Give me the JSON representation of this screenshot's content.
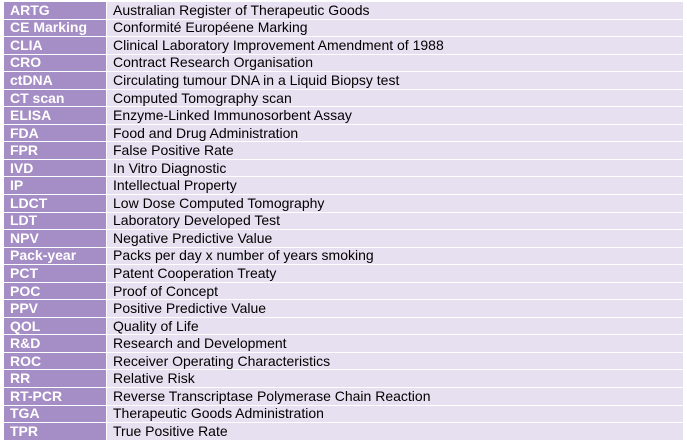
{
  "table": {
    "rows": [
      [
        "ARTG",
        "Australian Register of Therapeutic Goods"
      ],
      [
        "CE Marking",
        "Conformité Européene Marking"
      ],
      [
        "CLIA",
        "Clinical Laboratory Improvement Amendment of 1988"
      ],
      [
        "CRO",
        "Contract Research Organisation"
      ],
      [
        "ctDNA",
        "Circulating tumour DNA in a Liquid Biopsy test"
      ],
      [
        "CT scan",
        "Computed Tomography scan"
      ],
      [
        "ELISA",
        "Enzyme-Linked Immunosorbent Assay"
      ],
      [
        "FDA",
        "Food and Drug Administration"
      ],
      [
        "FPR",
        "False Positive Rate"
      ],
      [
        "IVD",
        "In Vitro Diagnostic"
      ],
      [
        "IP",
        "Intellectual Property"
      ],
      [
        "LDCT",
        "Low Dose Computed Tomography"
      ],
      [
        "LDT",
        "Laboratory Developed Test"
      ],
      [
        "NPV",
        "Negative Predictive Value"
      ],
      [
        "Pack-year",
        "Packs per day x number of years smoking"
      ],
      [
        "PCT",
        "Patent Cooperation Treaty"
      ],
      [
        "POC",
        "Proof of Concept"
      ],
      [
        "PPV",
        "Positive Predictive Value"
      ],
      [
        "QOL",
        "Quality of Life"
      ],
      [
        "R&D",
        "Research and Development"
      ],
      [
        "ROC",
        "Receiver Operating Characteristics"
      ],
      [
        "RR",
        "Relative Risk"
      ],
      [
        "RT-PCR",
        "Reverse Transcriptase Polymerase Chain Reaction"
      ],
      [
        "TGA",
        "Therapeutic Goods Administration"
      ],
      [
        "TPR",
        "True Positive Rate"
      ]
    ]
  }
}
